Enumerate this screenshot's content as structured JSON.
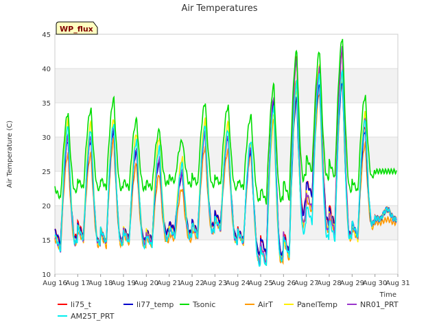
{
  "chart_data": {
    "type": "line",
    "title": "Air Temperatures",
    "xlabel": "Time",
    "ylabel": "Air Temperature (C)",
    "site_badge": "WP_flux",
    "x_ticks": [
      "Aug 16",
      "Aug 17",
      "Aug 18",
      "Aug 19",
      "Aug 20",
      "Aug 21",
      "Aug 22",
      "Aug 23",
      "Aug 24",
      "Aug 25",
      "Aug 26",
      "Aug 27",
      "Aug 28",
      "Aug 29",
      "Aug 30",
      "Aug 31"
    ],
    "y_ticks": [
      10,
      15,
      20,
      25,
      30,
      35,
      40,
      45
    ],
    "xlim_days": [
      16,
      31
    ],
    "ylim": [
      10,
      45
    ],
    "grid": "horizontal bands",
    "legend_placement": "bottom",
    "daily_profile": {
      "days": [
        "Aug 16",
        "Aug 17",
        "Aug 18",
        "Aug 19",
        "Aug 20",
        "Aug 21",
        "Aug 22",
        "Aug 23",
        "Aug 24",
        "Aug 25",
        "Aug 26",
        "Aug 27",
        "Aug 28",
        "Aug 29",
        "Aug 30"
      ],
      "description_units": "deg C"
    },
    "series": [
      {
        "name": "li75_t",
        "color": "#ff0000",
        "min": [
          14.5,
          15.8,
          14.6,
          15.2,
          15.0,
          16.5,
          16.0,
          17.5,
          15.0,
          12.8,
          13.0,
          21.5,
          17.0,
          15.5,
          18.0
        ],
        "max": [
          30.0,
          30.0,
          31.0,
          28.0,
          26.5,
          24.5,
          30.5,
          30.0,
          28.5,
          35.5,
          41.5,
          40.0,
          42.5,
          31.5,
          19.5
        ]
      },
      {
        "name": "li77_temp",
        "color": "#0000cc",
        "min": [
          14.5,
          15.5,
          14.5,
          15.2,
          15.0,
          16.5,
          16.0,
          17.5,
          15.0,
          12.8,
          13.0,
          21.5,
          17.0,
          15.5,
          18.0
        ],
        "max": [
          29.5,
          29.5,
          31.0,
          28.0,
          26.5,
          24.5,
          30.5,
          30.0,
          28.0,
          35.0,
          35.5,
          37.5,
          38.0,
          31.0,
          19.5
        ]
      },
      {
        "name": "Tsonic",
        "color": "#00dd00",
        "min": [
          21.0,
          22.5,
          22.5,
          22.5,
          22.5,
          23.5,
          23.0,
          23.0,
          22.5,
          20.5,
          21.0,
          25.0,
          24.0,
          22.0,
          25.0
        ],
        "max": [
          33.5,
          34.0,
          35.5,
          32.5,
          31.0,
          29.5,
          35.0,
          34.5,
          33.0,
          37.5,
          42.5,
          42.5,
          44.5,
          36.0,
          25.0
        ]
      },
      {
        "name": "AirT",
        "color": "#ff9900",
        "min": [
          13.5,
          14.8,
          14.0,
          14.5,
          14.2,
          15.0,
          15.0,
          16.5,
          14.5,
          11.5,
          12.0,
          19.0,
          16.0,
          15.0,
          17.5
        ],
        "max": [
          27.5,
          27.5,
          29.5,
          26.0,
          24.5,
          22.5,
          28.5,
          28.0,
          27.5,
          32.5,
          38.5,
          36.5,
          38.0,
          29.0,
          18.0
        ]
      },
      {
        "name": "PanelTemp",
        "color": "#ffee00",
        "min": [
          13.5,
          15.0,
          14.5,
          14.8,
          14.5,
          15.5,
          15.5,
          16.5,
          14.5,
          11.5,
          12.5,
          19.5,
          16.5,
          15.0,
          18.0
        ],
        "max": [
          32.5,
          32.0,
          32.5,
          30.5,
          30.0,
          27.0,
          32.5,
          32.0,
          29.0,
          33.5,
          37.0,
          40.5,
          39.5,
          33.5,
          19.5
        ]
      },
      {
        "name": "NR01_PRT",
        "color": "#9933cc",
        "min": [
          13.5,
          15.0,
          14.5,
          14.8,
          14.5,
          15.5,
          15.5,
          16.5,
          14.5,
          11.5,
          12.5,
          19.5,
          16.0,
          15.5,
          18.0
        ],
        "max": [
          30.0,
          30.0,
          31.5,
          28.5,
          27.0,
          25.0,
          30.5,
          30.0,
          28.5,
          36.0,
          41.5,
          40.0,
          43.0,
          32.5,
          19.5
        ]
      },
      {
        "name": "AM25T_PRT",
        "color": "#00eeee",
        "min": [
          13.5,
          15.0,
          14.5,
          14.5,
          14.0,
          15.5,
          15.5,
          16.5,
          14.5,
          11.0,
          12.5,
          17.5,
          15.0,
          15.5,
          18.0
        ],
        "max": [
          31.5,
          31.0,
          32.0,
          29.5,
          28.5,
          26.0,
          31.5,
          31.0,
          29.5,
          34.5,
          38.0,
          39.0,
          39.5,
          32.5,
          19.5
        ]
      }
    ]
  }
}
